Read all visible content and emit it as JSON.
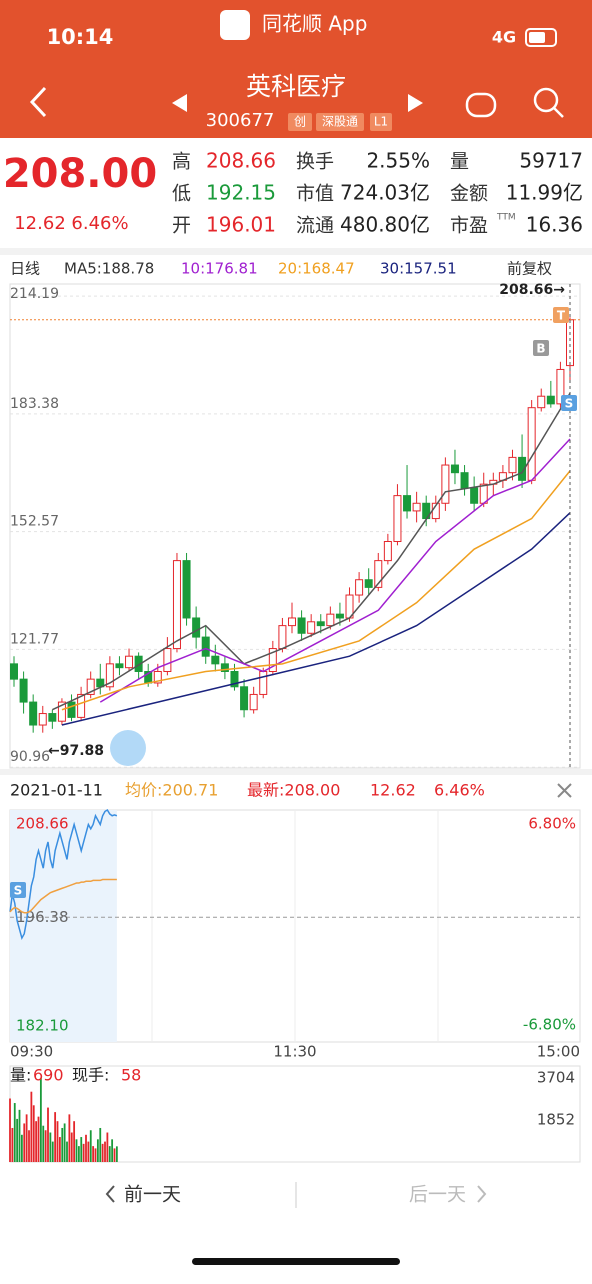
{
  "status_bar": {
    "time": "10:14",
    "app": "同花顺 App",
    "network": "4G"
  },
  "header": {
    "name": "英科医疗",
    "code": "300677",
    "tags": [
      "创",
      "深股通",
      "L1"
    ]
  },
  "quote": {
    "price": "208.00",
    "change": "12.62",
    "change_pct": "6.46%",
    "fields": [
      {
        "label": "高",
        "value": "208.66"
      },
      {
        "label": "低",
        "value": "192.15"
      },
      {
        "label": "开",
        "value": "196.01"
      },
      {
        "label": "换手",
        "value": "2.55%"
      },
      {
        "label": "市值",
        "value": "724.03亿"
      },
      {
        "label": "流通",
        "value": "480.80亿"
      },
      {
        "label": "量",
        "value": "59717"
      },
      {
        "label": "金额",
        "value": "11.99亿"
      },
      {
        "label": "市盈",
        "sup": "TTM",
        "value": "16.36"
      }
    ]
  },
  "kline": {
    "period": "日线",
    "ma_legend": [
      "MA5:188.78",
      "10:176.81",
      "20:168.47",
      "30:157.51"
    ],
    "adjust": "前复权",
    "ylim": [
      90.76,
      217.35
    ],
    "yticks": [
      214.19,
      183.38,
      152.57,
      121.77,
      90.96
    ],
    "high_note": "208.66→",
    "low_note": "←97.88",
    "markers": [
      "B",
      "T",
      "S"
    ],
    "candles": [
      [
        118,
        114,
        120,
        112
      ],
      [
        114,
        108,
        116,
        105
      ],
      [
        108,
        102,
        110,
        100
      ],
      [
        102,
        105,
        107,
        100
      ],
      [
        105,
        103,
        106,
        101
      ],
      [
        103,
        108,
        109,
        102
      ],
      [
        108,
        104,
        110,
        103
      ],
      [
        104,
        110,
        112,
        103
      ],
      [
        110,
        114,
        116,
        109
      ],
      [
        114,
        112,
        118,
        110
      ],
      [
        112,
        118,
        120,
        111
      ],
      [
        118,
        117,
        120,
        115
      ],
      [
        117,
        120,
        122,
        116
      ],
      [
        120,
        116,
        121,
        114
      ],
      [
        116,
        113,
        118,
        112
      ],
      [
        113,
        116,
        118,
        112
      ],
      [
        116,
        122,
        125,
        115
      ],
      [
        122,
        145,
        147,
        121
      ],
      [
        145,
        130,
        147,
        128
      ],
      [
        130,
        125,
        133,
        122
      ],
      [
        125,
        120,
        128,
        118
      ],
      [
        120,
        118,
        123,
        116
      ],
      [
        118,
        116,
        120,
        114
      ],
      [
        116,
        112,
        118,
        111
      ],
      [
        112,
        106,
        114,
        104
      ],
      [
        106,
        110,
        112,
        105
      ],
      [
        110,
        116,
        117,
        109
      ],
      [
        116,
        122,
        124,
        115
      ],
      [
        122,
        128,
        130,
        121
      ],
      [
        128,
        130,
        134,
        126
      ],
      [
        130,
        126,
        132,
        124
      ],
      [
        126,
        129,
        131,
        125
      ],
      [
        129,
        128,
        131,
        126
      ],
      [
        128,
        131,
        133,
        127
      ],
      [
        131,
        130,
        134,
        128
      ],
      [
        130,
        136,
        138,
        129
      ],
      [
        136,
        140,
        142,
        134
      ],
      [
        140,
        138,
        143,
        136
      ],
      [
        138,
        145,
        147,
        137
      ],
      [
        145,
        150,
        152,
        144
      ],
      [
        150,
        162,
        165,
        149
      ],
      [
        162,
        158,
        170,
        156
      ],
      [
        158,
        160,
        163,
        155
      ],
      [
        160,
        156,
        162,
        154
      ],
      [
        156,
        160,
        162,
        155
      ],
      [
        160,
        170,
        172,
        158
      ],
      [
        170,
        168,
        174,
        165
      ],
      [
        168,
        164,
        170,
        162
      ],
      [
        164,
        160,
        167,
        158
      ],
      [
        160,
        165,
        168,
        159
      ],
      [
        165,
        166,
        168,
        162
      ],
      [
        166,
        168,
        170,
        164
      ],
      [
        168,
        172,
        174,
        166
      ],
      [
        172,
        166,
        178,
        164
      ],
      [
        166,
        185,
        187,
        165
      ],
      [
        185,
        188,
        190,
        184
      ],
      [
        188,
        186,
        192,
        185
      ],
      [
        186,
        195,
        197,
        185
      ],
      [
        196.01,
        208,
        208.66,
        192.15
      ]
    ],
    "ma": [
      {
        "color": "#555555",
        "x": [
          4,
          10,
          17,
          20,
          24,
          28,
          35,
          40,
          45,
          50,
          53,
          58
        ],
        "values": [
          106,
          113,
          124,
          128,
          118,
          122,
          130,
          145,
          163,
          165,
          168,
          188.78
        ]
      },
      {
        "color": "#a020d0",
        "x": [
          9,
          15,
          20,
          26,
          32,
          38,
          44,
          50,
          54,
          58
        ],
        "values": [
          108,
          117,
          122,
          116,
          124,
          132,
          150,
          162,
          166,
          176.81
        ]
      },
      {
        "color": "#f0a020",
        "x": [
          5,
          12,
          20,
          28,
          36,
          42,
          48,
          54,
          58
        ],
        "values": [
          106,
          112,
          116,
          118,
          124,
          134,
          148,
          156,
          168.47
        ]
      },
      {
        "color": "#1a237e",
        "x": [
          5,
          15,
          25,
          35,
          42,
          48,
          54,
          58
        ],
        "values": [
          102,
          108,
          114,
          120,
          128,
          138,
          148,
          157.51
        ]
      }
    ]
  },
  "intraday": {
    "date": "2021-01-11",
    "avg": "均价:200.71",
    "latest": "最新:208.00",
    "change": "12.62",
    "pct": "6.46%",
    "ylim": [
      182.1,
      208.66
    ],
    "yticks": [
      {
        "value": 208.66,
        "label": "208.66"
      },
      {
        "value": 196.38,
        "label": "196.38"
      },
      {
        "value": 182.1,
        "label": "182.10"
      }
    ],
    "pct_ticks": [
      "6.80%",
      "-6.80%"
    ],
    "times": [
      "09:30",
      "11:30",
      "15:00"
    ],
    "xlim": [
      0,
      240
    ],
    "price": [
      197,
      199,
      198,
      196,
      195,
      194,
      194.5,
      196,
      198,
      200,
      201,
      203,
      204,
      203,
      202,
      204,
      205,
      203,
      202,
      204,
      205,
      206,
      205,
      204,
      203,
      205,
      206,
      207,
      206,
      205,
      204,
      205,
      206,
      207,
      206.5,
      207,
      208,
      207.5,
      207,
      208,
      208.5,
      208.66,
      208.2,
      208,
      208.1,
      208
    ],
    "average": [
      197,
      197.3,
      197.5,
      197.4,
      197.2,
      197,
      196.9,
      196.9,
      197,
      197.2,
      197.5,
      197.8,
      198.1,
      198.4,
      198.6,
      198.8,
      199,
      199.2,
      199.3,
      199.4,
      199.5,
      199.6,
      199.7,
      199.8,
      199.9,
      200,
      200.1,
      200.2,
      200.3,
      200.3,
      200.4,
      200.4,
      200.5,
      200.5,
      200.5,
      200.6,
      200.6,
      200.6,
      200.6,
      200.7,
      200.7,
      200.7,
      200.7,
      200.7,
      200.7,
      200.71
    ]
  },
  "volume": {
    "label": "量:",
    "value": "690",
    "hand_label": "现手:",
    "hand": "58",
    "ylim": [
      0,
      3704
    ],
    "yticks": [
      1852,
      3704
    ],
    "values": [
      2800,
      1500,
      2600,
      1900,
      2300,
      1200,
      1700,
      2100,
      1400,
      3100,
      2500,
      1800,
      2000,
      3704,
      1600,
      1400,
      2400,
      1300,
      900,
      2200,
      1800,
      1100,
      1500,
      1700,
      900,
      2100,
      1300,
      1800,
      1000,
      700,
      1100,
      800,
      1200,
      900,
      1400,
      700,
      600,
      1000,
      1500,
      800,
      900,
      1300,
      700,
      1000,
      600,
      690
    ]
  },
  "nav": {
    "prev": "前一天",
    "next": "后一天"
  }
}
